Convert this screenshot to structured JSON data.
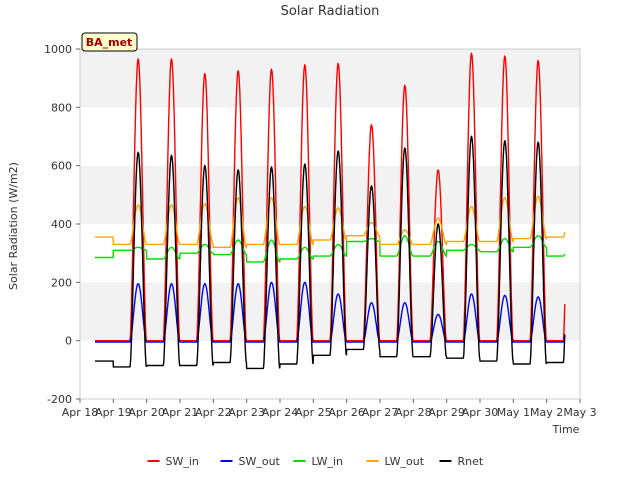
{
  "chart_data": {
    "type": "line",
    "title": "Solar Radiation",
    "xlabel": "Time",
    "ylabel": "Solar Radiation (W/m2)",
    "station_label": "BA_met",
    "xlim": [
      "2024-04-18",
      "2024-05-03"
    ],
    "ylim": [
      -200,
      1000
    ],
    "y_ticks": [
      -200,
      0,
      200,
      400,
      600,
      800,
      1000
    ],
    "x_ticks": [
      {
        "date": "2024-04-18",
        "label": "Apr 18"
      },
      {
        "date": "2024-04-19",
        "label": "Apr 19"
      },
      {
        "date": "2024-04-20",
        "label": "Apr 20"
      },
      {
        "date": "2024-04-21",
        "label": "Apr 21"
      },
      {
        "date": "2024-04-22",
        "label": "Apr 22"
      },
      {
        "date": "2024-04-23",
        "label": "Apr 23"
      },
      {
        "date": "2024-04-24",
        "label": "Apr 24"
      },
      {
        "date": "2024-04-25",
        "label": "Apr 25"
      },
      {
        "date": "2024-04-26",
        "label": "Apr 26"
      },
      {
        "date": "2024-04-27",
        "label": "Apr 27"
      },
      {
        "date": "2024-04-28",
        "label": "Apr 28"
      },
      {
        "date": "2024-04-29",
        "label": "Apr 29"
      },
      {
        "date": "2024-04-30",
        "label": "Apr 30"
      },
      {
        "date": "2024-05-01",
        "label": "May 1"
      },
      {
        "date": "2024-05-02",
        "label": "May 2"
      },
      {
        "date": "2024-05-03",
        "label": "May 3"
      }
    ],
    "grid": "horizontal bands",
    "legend_position": "bottom",
    "day_dates": [
      "2024-04-18",
      "2024-04-19",
      "2024-04-20",
      "2024-04-21",
      "2024-04-22",
      "2024-04-23",
      "2024-04-24",
      "2024-04-25",
      "2024-04-26",
      "2024-04-27",
      "2024-04-28",
      "2024-04-29",
      "2024-04-30",
      "2024-05-01",
      "2024-05-02"
    ],
    "series": [
      {
        "name": "SW_in",
        "color": "#ff0000",
        "daily_peak": [
          965,
          965,
          915,
          925,
          930,
          945,
          950,
          740,
          875,
          585,
          985,
          975,
          960,
          980
        ],
        "night": [
          0,
          0,
          0,
          0,
          0,
          0,
          0,
          0,
          0,
          0,
          0,
          0,
          0,
          0,
          0
        ]
      },
      {
        "name": "SW_out",
        "color": "#0000ff",
        "daily_peak": [
          195,
          195,
          195,
          195,
          200,
          200,
          160,
          130,
          130,
          90,
          160,
          155,
          150,
          160
        ],
        "night": [
          -5,
          -5,
          -5,
          -5,
          -5,
          -5,
          -5,
          -5,
          -5,
          -5,
          -5,
          -5,
          -5,
          -5,
          -5
        ]
      },
      {
        "name": "LW_in",
        "color": "#00dd00",
        "daily_peak": [
          320,
          320,
          330,
          345,
          345,
          320,
          330,
          350,
          360,
          340,
          330,
          350,
          360,
          345
        ],
        "night": [
          285,
          310,
          280,
          300,
          295,
          270,
          280,
          290,
          340,
          290,
          290,
          310,
          305,
          320,
          290
        ]
      },
      {
        "name": "LW_out",
        "color": "#ffa500",
        "daily_peak": [
          465,
          465,
          470,
          490,
          490,
          460,
          455,
          405,
          380,
          420,
          460,
          490,
          495,
          490
        ],
        "night": [
          355,
          330,
          330,
          330,
          320,
          330,
          330,
          345,
          360,
          330,
          330,
          340,
          340,
          350,
          355
        ]
      },
      {
        "name": "Rnet",
        "color": "#000000",
        "daily_peak": [
          645,
          635,
          600,
          585,
          595,
          605,
          650,
          530,
          660,
          400,
          700,
          685,
          680,
          680
        ],
        "night": [
          -70,
          -90,
          -85,
          -85,
          -75,
          -95,
          -80,
          -50,
          -30,
          -55,
          -55,
          -60,
          -70,
          -80,
          -75
        ]
      }
    ]
  }
}
